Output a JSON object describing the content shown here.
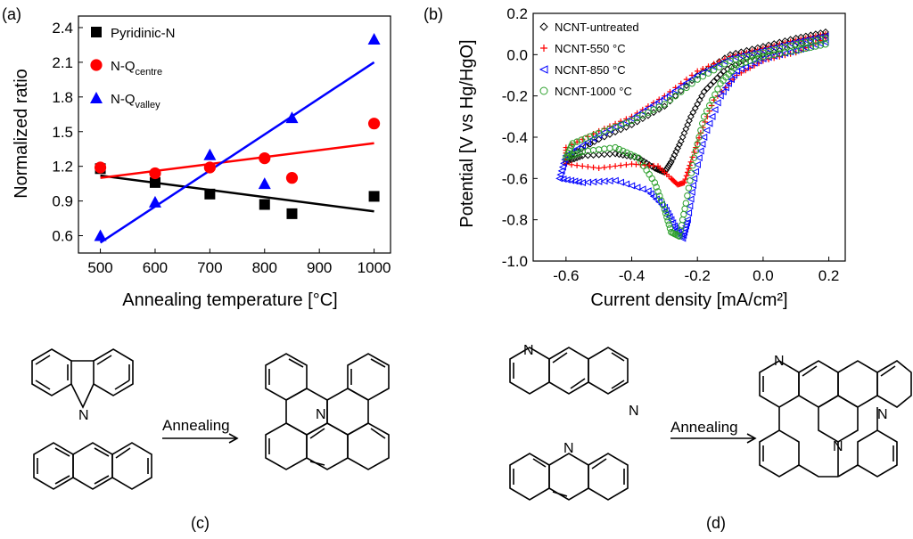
{
  "panel_labels": {
    "a": "(a)",
    "b": "(b)",
    "c": "(c)",
    "d": "(d)"
  },
  "chart_data": [
    {
      "type": "scatter",
      "panel": "(a)",
      "xlabel": "Annealing temperature [°C]",
      "ylabel": "Normalized ratio",
      "xlim": [
        460,
        1030
      ],
      "ylim": [
        0.45,
        2.5
      ],
      "xticks": [
        500,
        600,
        700,
        800,
        900,
        1000
      ],
      "yticks": [
        0.6,
        0.9,
        1.2,
        1.5,
        1.8,
        2.1,
        2.4
      ],
      "xtick_labels": [
        "500",
        "600",
        "700",
        "800",
        "900",
        "1000"
      ],
      "ytick_labels": [
        "0.6",
        "0.9",
        "1.2",
        "1.5",
        "1.8",
        "2.1",
        "2.4"
      ],
      "legend_position": "top-left",
      "series": [
        {
          "name": "Pyridinic-N",
          "legend_main": "Pyridinic-N",
          "legend_sub": "",
          "marker": "square",
          "color": "#000000",
          "x": [
            500,
            600,
            700,
            800,
            850,
            1000
          ],
          "y": [
            1.18,
            1.06,
            0.96,
            0.87,
            0.79,
            0.94
          ],
          "fit": [
            [
              500,
              1.12
            ],
            [
              1000,
              0.81
            ]
          ]
        },
        {
          "name": "N-Qcentre",
          "legend_main": "N-Q",
          "legend_sub": "centre",
          "marker": "circle",
          "color": "#ff0000",
          "x": [
            500,
            600,
            700,
            800,
            850,
            1000
          ],
          "y": [
            1.19,
            1.14,
            1.19,
            1.27,
            1.1,
            1.57
          ],
          "fit": [
            [
              500,
              1.1
            ],
            [
              1000,
              1.4
            ]
          ]
        },
        {
          "name": "N-Qvalley",
          "legend_main": "N-Q",
          "legend_sub": "valley",
          "marker": "triangle",
          "color": "#0000ff",
          "x": [
            500,
            600,
            700,
            800,
            850,
            1000
          ],
          "y": [
            0.6,
            0.89,
            1.3,
            1.05,
            1.62,
            2.3
          ],
          "fit": [
            [
              500,
              0.54
            ],
            [
              1000,
              2.1
            ]
          ]
        }
      ]
    },
    {
      "type": "line",
      "panel": "(b)",
      "xlabel": "Current density [mA/cm²]",
      "ylabel": "Potential [V vs  Hg/HgO]",
      "xlim": [
        -0.7,
        0.25
      ],
      "ylim": [
        -1.0,
        0.2
      ],
      "xticks": [
        -0.6,
        -0.4,
        -0.2,
        0.0,
        0.2
      ],
      "yticks": [
        -1.0,
        -0.8,
        -0.6,
        -0.4,
        -0.2,
        0.0,
        0.2
      ],
      "xtick_labels": [
        "-0.6",
        "-0.4",
        "-0.2",
        "0.0",
        "0.2"
      ],
      "ytick_labels": [
        "-1.0",
        "-0.8",
        "-0.6",
        "-0.4",
        "-0.2",
        "0.0",
        "0.2"
      ],
      "legend_position": "top-left",
      "series": [
        {
          "name": "NCNT-untreated",
          "marker": "diamond",
          "color": "#000000",
          "x": [
            0.19,
            0.1,
            0.0,
            -0.1,
            -0.2,
            -0.3,
            -0.4,
            -0.5,
            -0.58,
            -0.6,
            -0.55,
            -0.45,
            -0.38,
            -0.33,
            -0.3,
            -0.28,
            -0.25,
            -0.22,
            -0.18,
            -0.12,
            -0.05,
            0.05,
            0.19
          ],
          "y": [
            0.11,
            0.08,
            0.04,
            0.0,
            -0.1,
            -0.25,
            -0.34,
            -0.41,
            -0.48,
            -0.52,
            -0.49,
            -0.48,
            -0.5,
            -0.55,
            -0.57,
            -0.52,
            -0.42,
            -0.3,
            -0.18,
            -0.08,
            -0.02,
            0.02,
            0.09
          ]
        },
        {
          "name": "NCNT-550 °C",
          "marker": "plus",
          "color": "#ff0000",
          "x": [
            0.19,
            0.1,
            0.0,
            -0.1,
            -0.2,
            -0.3,
            -0.4,
            -0.5,
            -0.6,
            -0.6,
            -0.5,
            -0.4,
            -0.32,
            -0.28,
            -0.26,
            -0.24,
            -0.22,
            -0.19,
            -0.15,
            -0.08,
            0.0,
            0.1,
            0.19
          ],
          "y": [
            0.1,
            0.07,
            0.03,
            -0.01,
            -0.08,
            -0.2,
            -0.3,
            -0.37,
            -0.45,
            -0.53,
            -0.55,
            -0.53,
            -0.54,
            -0.6,
            -0.63,
            -0.62,
            -0.52,
            -0.38,
            -0.22,
            -0.1,
            -0.03,
            0.01,
            0.08
          ]
        },
        {
          "name": "NCNT-850 °C",
          "marker": "tri-left",
          "color": "#0000ff",
          "x": [
            0.19,
            0.1,
            0.0,
            -0.1,
            -0.2,
            -0.3,
            -0.4,
            -0.5,
            -0.6,
            -0.62,
            -0.55,
            -0.45,
            -0.35,
            -0.3,
            -0.27,
            -0.245,
            -0.23,
            -0.21,
            -0.18,
            -0.13,
            -0.08,
            0.0,
            0.1,
            0.19
          ],
          "y": [
            0.09,
            0.06,
            0.02,
            -0.02,
            -0.1,
            -0.21,
            -0.31,
            -0.39,
            -0.49,
            -0.6,
            -0.62,
            -0.61,
            -0.66,
            -0.74,
            -0.83,
            -0.89,
            -0.8,
            -0.6,
            -0.4,
            -0.2,
            -0.08,
            -0.02,
            0.02,
            0.06
          ]
        },
        {
          "name": "NCNT-1000 °C",
          "marker": "hex",
          "color": "#2ca02c",
          "x": [
            0.19,
            0.1,
            0.0,
            -0.1,
            -0.2,
            -0.3,
            -0.4,
            -0.5,
            -0.58,
            -0.6,
            -0.55,
            -0.45,
            -0.38,
            -0.33,
            -0.3,
            -0.28,
            -0.255,
            -0.235,
            -0.21,
            -0.18,
            -0.13,
            -0.08,
            0.0,
            0.1,
            0.19
          ],
          "y": [
            0.08,
            0.05,
            0.01,
            -0.03,
            -0.12,
            -0.24,
            -0.32,
            -0.38,
            -0.43,
            -0.5,
            -0.47,
            -0.45,
            -0.5,
            -0.62,
            -0.75,
            -0.86,
            -0.88,
            -0.72,
            -0.5,
            -0.3,
            -0.14,
            -0.05,
            -0.01,
            0.02,
            0.05
          ]
        }
      ]
    }
  ],
  "schemes": {
    "c": {
      "arrow_label": "Annealing",
      "atom": "N"
    },
    "d": {
      "arrow_label": "Annealing",
      "atom": "N"
    }
  }
}
